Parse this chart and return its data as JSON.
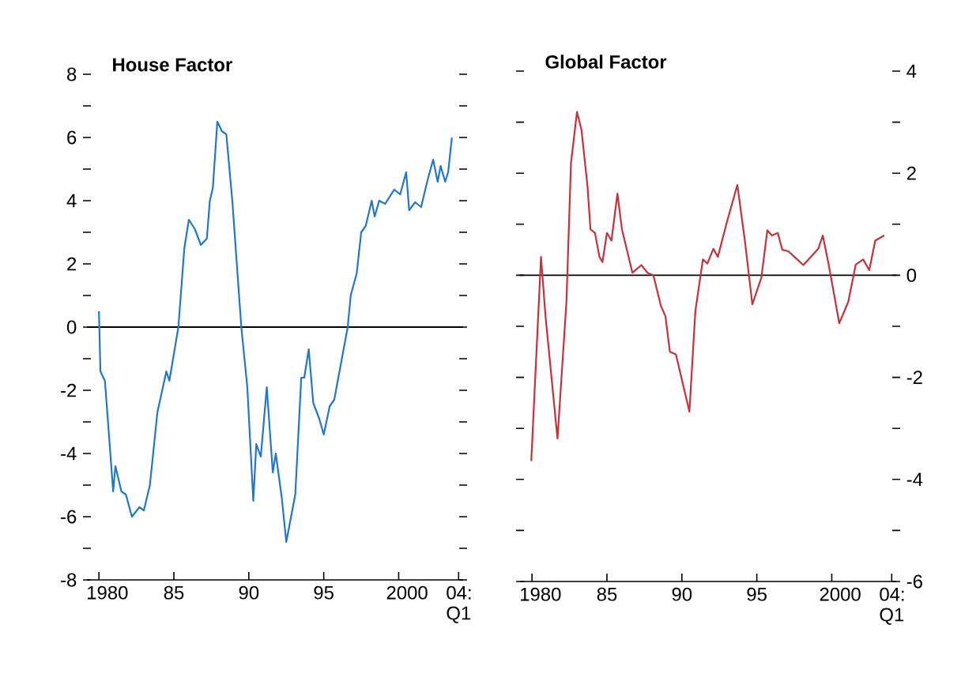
{
  "chart_data": [
    {
      "type": "line",
      "title": "House Factor",
      "xlim": [
        1979.2,
        2004.3
      ],
      "ylim": [
        -8,
        8
      ],
      "xticks": [
        1980,
        {
          "value": 1985,
          "label": "85"
        },
        {
          "value": 1990,
          "label": "90"
        },
        {
          "value": 1995,
          "label": "95"
        },
        2000,
        {
          "value": 2004,
          "label": "04: Q1"
        }
      ],
      "yticks": [
        -8,
        {
          "value": -7,
          "label": null
        },
        -6,
        {
          "value": -5,
          "label": null
        },
        -4,
        {
          "value": -3,
          "label": null
        },
        -2,
        {
          "value": -1,
          "label": null
        },
        0,
        {
          "value": 1,
          "label": null
        },
        2,
        {
          "value": 3,
          "label": null
        },
        4,
        {
          "value": 5,
          "label": null
        },
        6,
        {
          "value": 7,
          "label": null
        },
        8
      ],
      "ref_lines": [
        {
          "axis": "y",
          "value": 0,
          "color": "#000000"
        }
      ],
      "series": [
        {
          "color": "#1f78c8",
          "x": [
            1980.0,
            1980.1,
            1980.4,
            1980.95,
            1981.1,
            1981.5,
            1981.8,
            1982.2,
            1982.7,
            1983.0,
            1983.4,
            1983.9,
            1984.5,
            1984.7,
            1985.3,
            1985.7,
            1986.0,
            1986.4,
            1986.8,
            1987.2,
            1987.4,
            1987.6,
            1987.9,
            1988.2,
            1988.5,
            1988.9,
            1989.5,
            1989.9,
            1990.3,
            1990.5,
            1990.8,
            1991.2,
            1991.6,
            1991.8,
            1992.2,
            1992.5,
            1993.1,
            1993.5,
            1993.7,
            1994.0,
            1994.3,
            1994.7,
            1995.0,
            1995.4,
            1995.7,
            1996.6,
            1996.8,
            1997.2,
            1997.5,
            1997.8,
            1998.2,
            1998.4,
            1998.7,
            1999.1,
            1999.7,
            2000.1,
            2000.5,
            2000.7,
            2001.1,
            2001.5,
            2001.9,
            2002.3,
            2002.6,
            2002.8,
            2003.1,
            2003.3,
            2003.55
          ],
          "values": [
            0.5,
            -1.4,
            -1.7,
            -5.2,
            -4.4,
            -5.2,
            -5.3,
            -6.0,
            -5.7,
            -5.8,
            -5.0,
            -2.7,
            -1.4,
            -1.7,
            0,
            2.5,
            3.4,
            3.1,
            2.6,
            2.8,
            4.0,
            4.4,
            6.5,
            6.2,
            6.1,
            4.0,
            0,
            -1.9,
            -5.5,
            -3.7,
            -4.1,
            -1.9,
            -4.6,
            -4.0,
            -5.4,
            -6.8,
            -5.3,
            -1.6,
            -1.6,
            -0.7,
            -2.4,
            -2.9,
            -3.4,
            -2.5,
            -2.3,
            0,
            1.0,
            1.7,
            3.0,
            3.2,
            4.0,
            3.5,
            4.0,
            3.9,
            4.35,
            4.2,
            4.9,
            3.7,
            3.95,
            3.8,
            4.6,
            5.3,
            4.6,
            5.1,
            4.6,
            4.9,
            6.0
          ]
        }
      ]
    },
    {
      "type": "line",
      "title": "Global Factor",
      "xlim": [
        1979.2,
        2004.3
      ],
      "ylim": [
        -6,
        4
      ],
      "xticks": [
        1980,
        {
          "value": 1985,
          "label": "85"
        },
        {
          "value": 1990,
          "label": "90"
        },
        {
          "value": 1995,
          "label": "95"
        },
        2000,
        {
          "value": 2004,
          "label": "04: Q1"
        }
      ],
      "yticks": [
        -6,
        {
          "value": -5,
          "label": null
        },
        -4,
        {
          "value": -3,
          "label": null
        },
        -2,
        {
          "value": -1,
          "label": null
        },
        0,
        {
          "value": 1,
          "label": null
        },
        2,
        {
          "value": 3,
          "label": null
        },
        4
      ],
      "ref_lines": [
        {
          "axis": "y",
          "value": 0,
          "color": "#000000"
        }
      ],
      "series": [
        {
          "color": "#c8303a",
          "x": [
            1979.95,
            1980.6,
            1980.9,
            1981.7,
            1982.3,
            1982.6,
            1983.0,
            1983.3,
            1983.7,
            1983.9,
            1984.2,
            1984.5,
            1984.7,
            1985.0,
            1985.3,
            1985.7,
            1986.0,
            1986.7,
            1987.3,
            1987.7,
            1988.1,
            1988.6,
            1988.9,
            1989.2,
            1989.6,
            1990.5,
            1990.9,
            1991.4,
            1991.7,
            1992.1,
            1992.4,
            1993.0,
            1993.7,
            1994.2,
            1994.7,
            1995.3,
            1995.7,
            1996.0,
            1996.4,
            1996.7,
            1997.1,
            1997.7,
            1998.1,
            1998.6,
            1999.1,
            1999.4,
            1999.8,
            2000.5,
            2001.1,
            2001.6,
            2002.1,
            2002.5,
            2002.9,
            2003.5
          ],
          "values": [
            -3.64,
            0.36,
            -0.8,
            -3.2,
            -0.5,
            2.2,
            3.2,
            2.85,
            1.75,
            0.9,
            0.83,
            0.36,
            0.26,
            0.83,
            0.68,
            1.6,
            0.9,
            0.05,
            0.2,
            0.05,
            0,
            -0.6,
            -0.8,
            -1.5,
            -1.55,
            -2.67,
            -0.7,
            0.31,
            0.23,
            0.52,
            0.36,
            1.04,
            1.77,
            0.68,
            -0.57,
            -0.05,
            0.88,
            0.78,
            0.83,
            0.5,
            0.47,
            0.31,
            0.2,
            0.36,
            0.52,
            0.78,
            0.2,
            -0.94,
            -0.52,
            0.21,
            0.31,
            0.1,
            0.68,
            0.78
          ]
        }
      ]
    }
  ]
}
